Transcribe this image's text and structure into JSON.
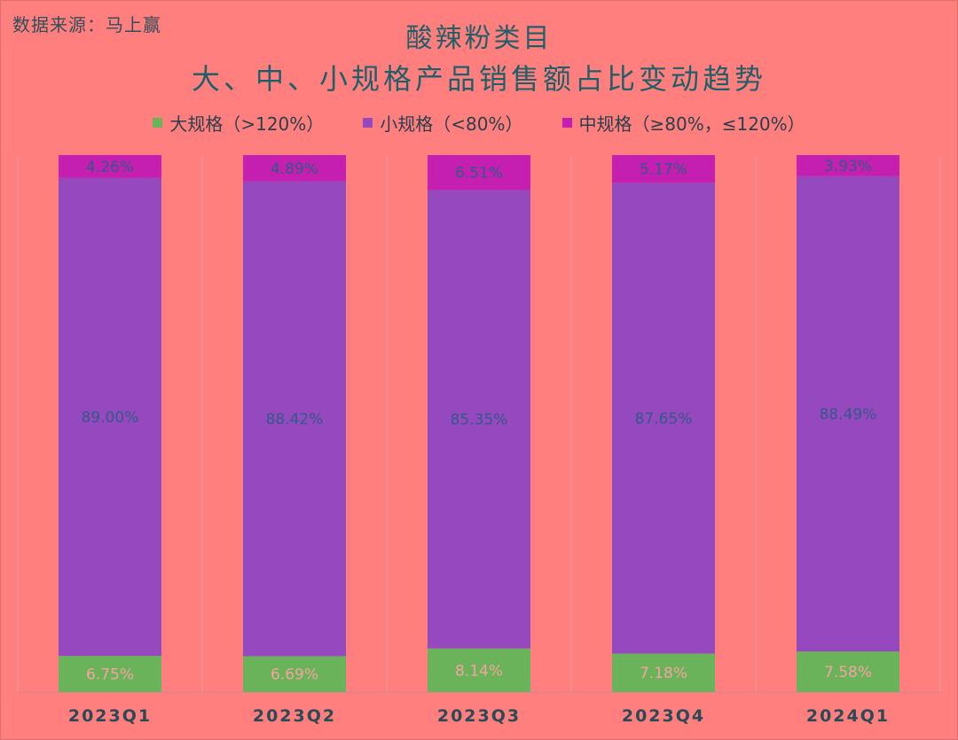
{
  "source": "数据来源：马上赢",
  "chart_data": {
    "type": "bar",
    "stacked": true,
    "percent_stacked": true,
    "title": "酸辣粉类目",
    "subtitle": "大、中、小规格产品销售额占比变动趋势",
    "categories": [
      "2023Q1",
      "2023Q2",
      "2023Q3",
      "2023Q4",
      "2024Q1"
    ],
    "ylim": [
      0,
      100
    ],
    "grid": true,
    "legend_position": "top",
    "series": [
      {
        "name": "大规格（>120%）",
        "color": "#6BB35A",
        "label_color": "#F5A3A0",
        "values": [
          6.75,
          6.69,
          8.14,
          7.18,
          7.58
        ],
        "labels": [
          "6.75%",
          "6.69%",
          "8.14%",
          "7.18%",
          "7.58%"
        ]
      },
      {
        "name": "小规格（<80%）",
        "color": "#9648BE",
        "label_color": "#2F5A8A",
        "values": [
          89.0,
          88.42,
          85.35,
          87.65,
          88.49
        ],
        "labels": [
          "89.00%",
          "88.42%",
          "85.35%",
          "87.65%",
          "88.49%"
        ]
      },
      {
        "name": "中规格（≥80%，≤120%）",
        "color": "#C41FB0",
        "label_color": "#2F5A8A",
        "values": [
          4.26,
          4.89,
          6.51,
          5.17,
          3.93
        ],
        "labels": [
          "4.26%",
          "4.89%",
          "6.51%",
          "5.17%",
          "3.93%"
        ]
      }
    ]
  }
}
